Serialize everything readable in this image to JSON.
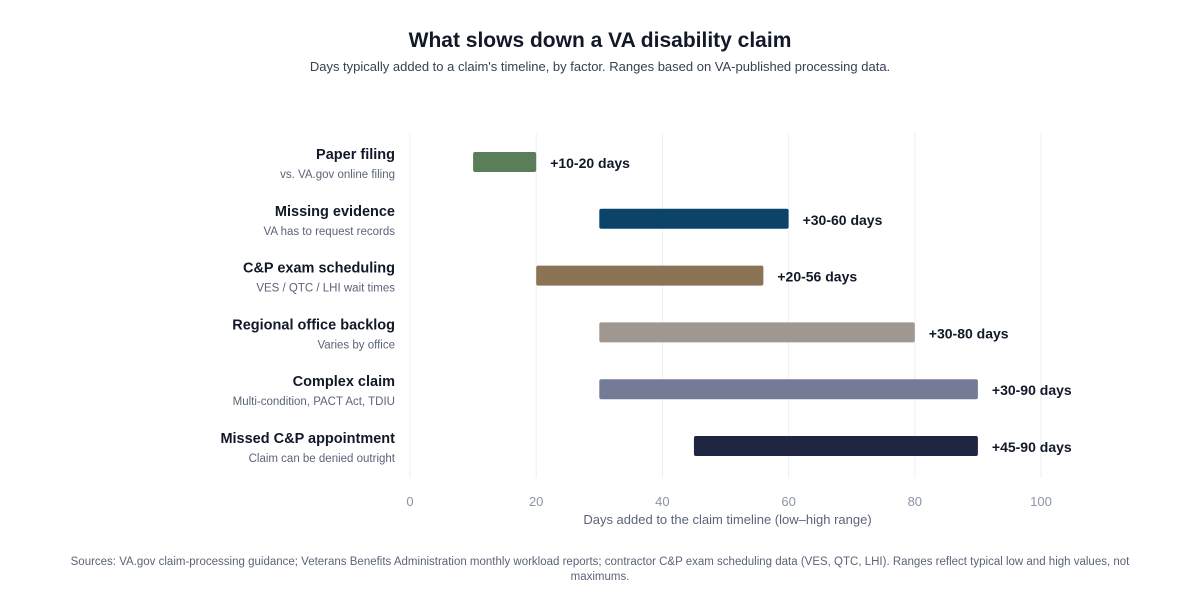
{
  "chart_data": {
    "type": "bar",
    "orientation": "horizontal-range",
    "title": "What slows down a VA disability claim",
    "subtitle": "Days typically added to a claim's timeline, by factor. Ranges based on VA-published processing data.",
    "xlabel": "Days added to the claim timeline (low–high range)",
    "xlim": [
      0,
      100
    ],
    "xticks": [
      "0",
      "20",
      "40",
      "60",
      "80",
      "100"
    ],
    "grid": true,
    "categories": [
      {
        "label": "Paper filing",
        "note": "vs. VA.gov online filing",
        "low": 10,
        "high": 20,
        "value_label": "+10-20 days",
        "color": "#5a7d5a"
      },
      {
        "label": "Missing evidence",
        "note": "VA has to request records",
        "low": 30,
        "high": 60,
        "value_label": "+30-60 days",
        "color": "#0b4468"
      },
      {
        "label": "C&P exam scheduling",
        "note": "VES / QTC / LHI wait times",
        "low": 20,
        "high": 56,
        "value_label": "+20-56 days",
        "color": "#8b7355"
      },
      {
        "label": "Regional office backlog",
        "note": "Varies by office",
        "low": 30,
        "high": 80,
        "value_label": "+30-80 days",
        "color": "#a09890"
      },
      {
        "label": "Complex claim",
        "note": "Multi-condition, PACT Act, TDIU",
        "low": 30,
        "high": 90,
        "value_label": "+30-90 days",
        "color": "#737b96"
      },
      {
        "label": "Missed C&P appointment",
        "note": "Claim can be denied outright",
        "low": 45,
        "high": 90,
        "value_label": "+45-90 days",
        "color": "#1f2540"
      }
    ],
    "source": "Sources: VA.gov claim-processing guidance; Veterans Benefits Administration monthly workload reports; contractor C&P exam scheduling data (VES, QTC, LHI). Ranges reflect typical low and high values, not maximums."
  }
}
